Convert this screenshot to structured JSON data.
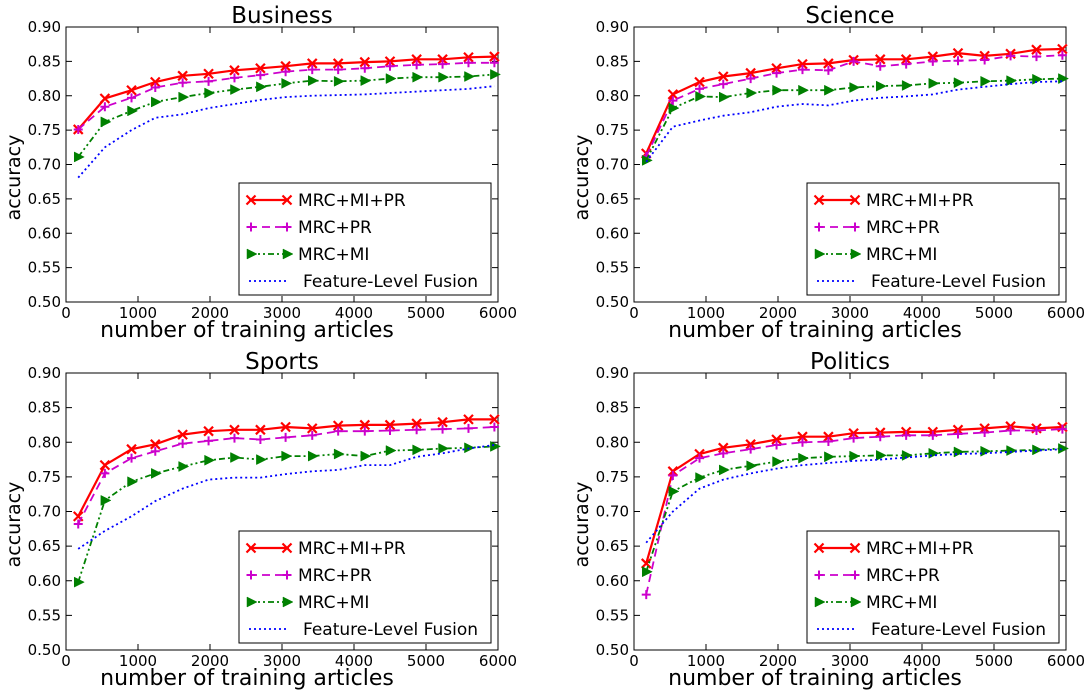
{
  "chart_data": [
    {
      "type": "line",
      "title": "Business",
      "xlabel": "number of training articles",
      "ylabel": "accuracy",
      "xlim": [
        0,
        6000
      ],
      "ylim": [
        0.5,
        0.9
      ],
      "xticks": [
        "0",
        "1000",
        "2000",
        "3000",
        "4000",
        "5000",
        "6000"
      ],
      "yticks": [
        "0.50",
        "0.55",
        "0.60",
        "0.65",
        "0.70",
        "0.75",
        "0.80",
        "0.85",
        "0.90"
      ],
      "grid": false,
      "legend": "lower-right",
      "x": [
        170,
        540,
        910,
        1240,
        1620,
        1980,
        2340,
        2700,
        3050,
        3420,
        3780,
        4150,
        4500,
        4870,
        5230,
        5590,
        5950
      ],
      "series": [
        {
          "name": "MRC+MI+PR",
          "color": "#ff0000",
          "marker": "x",
          "dash": "",
          "values": [
            0.751,
            0.796,
            0.808,
            0.82,
            0.829,
            0.832,
            0.837,
            0.84,
            0.843,
            0.847,
            0.847,
            0.849,
            0.85,
            0.853,
            0.853,
            0.856,
            0.857
          ]
        },
        {
          "name": "MRC+PR",
          "color": "#cc00cc",
          "marker": "+",
          "dash": "8,5",
          "values": [
            0.751,
            0.784,
            0.797,
            0.812,
            0.819,
            0.821,
            0.826,
            0.83,
            0.835,
            0.838,
            0.838,
            0.84,
            0.843,
            0.845,
            0.846,
            0.848,
            0.848
          ]
        },
        {
          "name": "MRC+MI",
          "color": "#008000",
          "marker": "triangle",
          "dash": "6,3,2,3,2,3",
          "values": [
            0.711,
            0.762,
            0.778,
            0.791,
            0.798,
            0.804,
            0.809,
            0.813,
            0.818,
            0.822,
            0.821,
            0.822,
            0.825,
            0.827,
            0.827,
            0.828,
            0.831
          ]
        },
        {
          "name": "Feature-Level Fusion",
          "color": "#0000ff",
          "marker": "",
          "dash": "2,3",
          "values": [
            0.681,
            0.725,
            0.75,
            0.768,
            0.773,
            0.782,
            0.788,
            0.794,
            0.798,
            0.8,
            0.801,
            0.802,
            0.804,
            0.806,
            0.808,
            0.81,
            0.814
          ]
        }
      ]
    },
    {
      "type": "line",
      "title": "Science",
      "xlabel": "number of training articles",
      "ylabel": "accuracy",
      "xlim": [
        0,
        6000
      ],
      "ylim": [
        0.5,
        0.9
      ],
      "xticks": [
        "0",
        "1000",
        "2000",
        "3000",
        "4000",
        "5000",
        "6000"
      ],
      "yticks": [
        "0.50",
        "0.55",
        "0.60",
        "0.65",
        "0.70",
        "0.75",
        "0.80",
        "0.85",
        "0.90"
      ],
      "grid": false,
      "legend": "lower-right",
      "x": [
        170,
        540,
        910,
        1240,
        1620,
        1980,
        2340,
        2700,
        3050,
        3420,
        3780,
        4150,
        4500,
        4870,
        5230,
        5590,
        5950
      ],
      "series": [
        {
          "name": "MRC+MI+PR",
          "color": "#ff0000",
          "marker": "x",
          "dash": "",
          "values": [
            0.716,
            0.802,
            0.82,
            0.828,
            0.833,
            0.84,
            0.846,
            0.847,
            0.852,
            0.853,
            0.853,
            0.857,
            0.862,
            0.858,
            0.861,
            0.867,
            0.868
          ]
        },
        {
          "name": "MRC+PR",
          "color": "#cc00cc",
          "marker": "+",
          "dash": "8,5",
          "values": [
            0.712,
            0.793,
            0.81,
            0.817,
            0.825,
            0.833,
            0.838,
            0.837,
            0.85,
            0.843,
            0.846,
            0.85,
            0.851,
            0.852,
            0.858,
            0.857,
            0.859
          ]
        },
        {
          "name": "MRC+MI",
          "color": "#008000",
          "marker": "triangle",
          "dash": "6,3,2,3,2,3",
          "values": [
            0.706,
            0.782,
            0.799,
            0.798,
            0.804,
            0.808,
            0.808,
            0.808,
            0.812,
            0.814,
            0.815,
            0.818,
            0.819,
            0.821,
            0.822,
            0.824,
            0.825
          ]
        },
        {
          "name": "Feature-Level Fusion",
          "color": "#0000ff",
          "marker": "",
          "dash": "2,3",
          "values": [
            0.704,
            0.755,
            0.764,
            0.771,
            0.776,
            0.784,
            0.788,
            0.786,
            0.793,
            0.797,
            0.799,
            0.802,
            0.809,
            0.813,
            0.817,
            0.82,
            0.821
          ]
        }
      ]
    },
    {
      "type": "line",
      "title": "Sports",
      "xlabel": "number of training articles",
      "ylabel": "accuracy",
      "xlim": [
        0,
        6000
      ],
      "ylim": [
        0.5,
        0.9
      ],
      "xticks": [
        "0",
        "1000",
        "2000",
        "3000",
        "4000",
        "5000",
        "6000"
      ],
      "yticks": [
        "0.50",
        "0.55",
        "0.60",
        "0.65",
        "0.70",
        "0.75",
        "0.80",
        "0.85",
        "0.90"
      ],
      "grid": false,
      "legend": "lower-right",
      "x": [
        170,
        540,
        910,
        1240,
        1620,
        1980,
        2340,
        2700,
        3050,
        3420,
        3780,
        4150,
        4500,
        4870,
        5230,
        5590,
        5950
      ],
      "series": [
        {
          "name": "MRC+MI+PR",
          "color": "#ff0000",
          "marker": "x",
          "dash": "",
          "values": [
            0.693,
            0.767,
            0.79,
            0.797,
            0.811,
            0.816,
            0.818,
            0.818,
            0.822,
            0.82,
            0.824,
            0.825,
            0.825,
            0.827,
            0.829,
            0.833,
            0.833
          ]
        },
        {
          "name": "MRC+PR",
          "color": "#cc00cc",
          "marker": "+",
          "dash": "8,5",
          "values": [
            0.682,
            0.755,
            0.777,
            0.787,
            0.798,
            0.802,
            0.806,
            0.804,
            0.807,
            0.81,
            0.816,
            0.816,
            0.817,
            0.818,
            0.819,
            0.82,
            0.822
          ]
        },
        {
          "name": "MRC+MI",
          "color": "#008000",
          "marker": "triangle",
          "dash": "6,3,2,3,2,3",
          "values": [
            0.598,
            0.716,
            0.743,
            0.755,
            0.765,
            0.774,
            0.778,
            0.775,
            0.78,
            0.78,
            0.783,
            0.78,
            0.788,
            0.789,
            0.791,
            0.792,
            0.794
          ]
        },
        {
          "name": "Feature-Level Fusion",
          "color": "#0000ff",
          "marker": "",
          "dash": "2,3",
          "values": [
            0.646,
            0.672,
            0.693,
            0.715,
            0.733,
            0.746,
            0.749,
            0.749,
            0.754,
            0.758,
            0.76,
            0.767,
            0.767,
            0.779,
            0.784,
            0.791,
            0.796
          ]
        }
      ]
    },
    {
      "type": "line",
      "title": "Politics",
      "xlabel": "number of training articles",
      "ylabel": "accuracy",
      "xlim": [
        0,
        6000
      ],
      "ylim": [
        0.5,
        0.9
      ],
      "xticks": [
        "0",
        "1000",
        "2000",
        "3000",
        "4000",
        "5000",
        "6000"
      ],
      "yticks": [
        "0.50",
        "0.55",
        "0.60",
        "0.65",
        "0.70",
        "0.75",
        "0.80",
        "0.85",
        "0.90"
      ],
      "grid": false,
      "legend": "lower-right",
      "x": [
        170,
        540,
        910,
        1240,
        1620,
        1980,
        2340,
        2700,
        3050,
        3420,
        3780,
        4150,
        4500,
        4870,
        5230,
        5590,
        5950
      ],
      "series": [
        {
          "name": "MRC+MI+PR",
          "color": "#ff0000",
          "marker": "x",
          "dash": "",
          "values": [
            0.625,
            0.758,
            0.783,
            0.792,
            0.797,
            0.804,
            0.808,
            0.808,
            0.813,
            0.814,
            0.815,
            0.815,
            0.818,
            0.82,
            0.823,
            0.82,
            0.822
          ]
        },
        {
          "name": "MRC+PR",
          "color": "#cc00cc",
          "marker": "+",
          "dash": "8,5",
          "values": [
            0.58,
            0.752,
            0.777,
            0.784,
            0.79,
            0.796,
            0.8,
            0.801,
            0.806,
            0.808,
            0.81,
            0.81,
            0.812,
            0.814,
            0.817,
            0.817,
            0.819
          ]
        },
        {
          "name": "MRC+MI",
          "color": "#008000",
          "marker": "triangle",
          "dash": "6,3,2,3,2,3",
          "values": [
            0.613,
            0.729,
            0.749,
            0.76,
            0.766,
            0.772,
            0.777,
            0.779,
            0.78,
            0.781,
            0.781,
            0.784,
            0.786,
            0.787,
            0.788,
            0.789,
            0.791
          ]
        },
        {
          "name": "Feature-Level Fusion",
          "color": "#0000ff",
          "marker": "",
          "dash": "2,3",
          "values": [
            0.655,
            0.7,
            0.733,
            0.746,
            0.755,
            0.762,
            0.767,
            0.77,
            0.773,
            0.775,
            0.778,
            0.781,
            0.783,
            0.784,
            0.786,
            0.788,
            0.79
          ]
        }
      ]
    }
  ]
}
